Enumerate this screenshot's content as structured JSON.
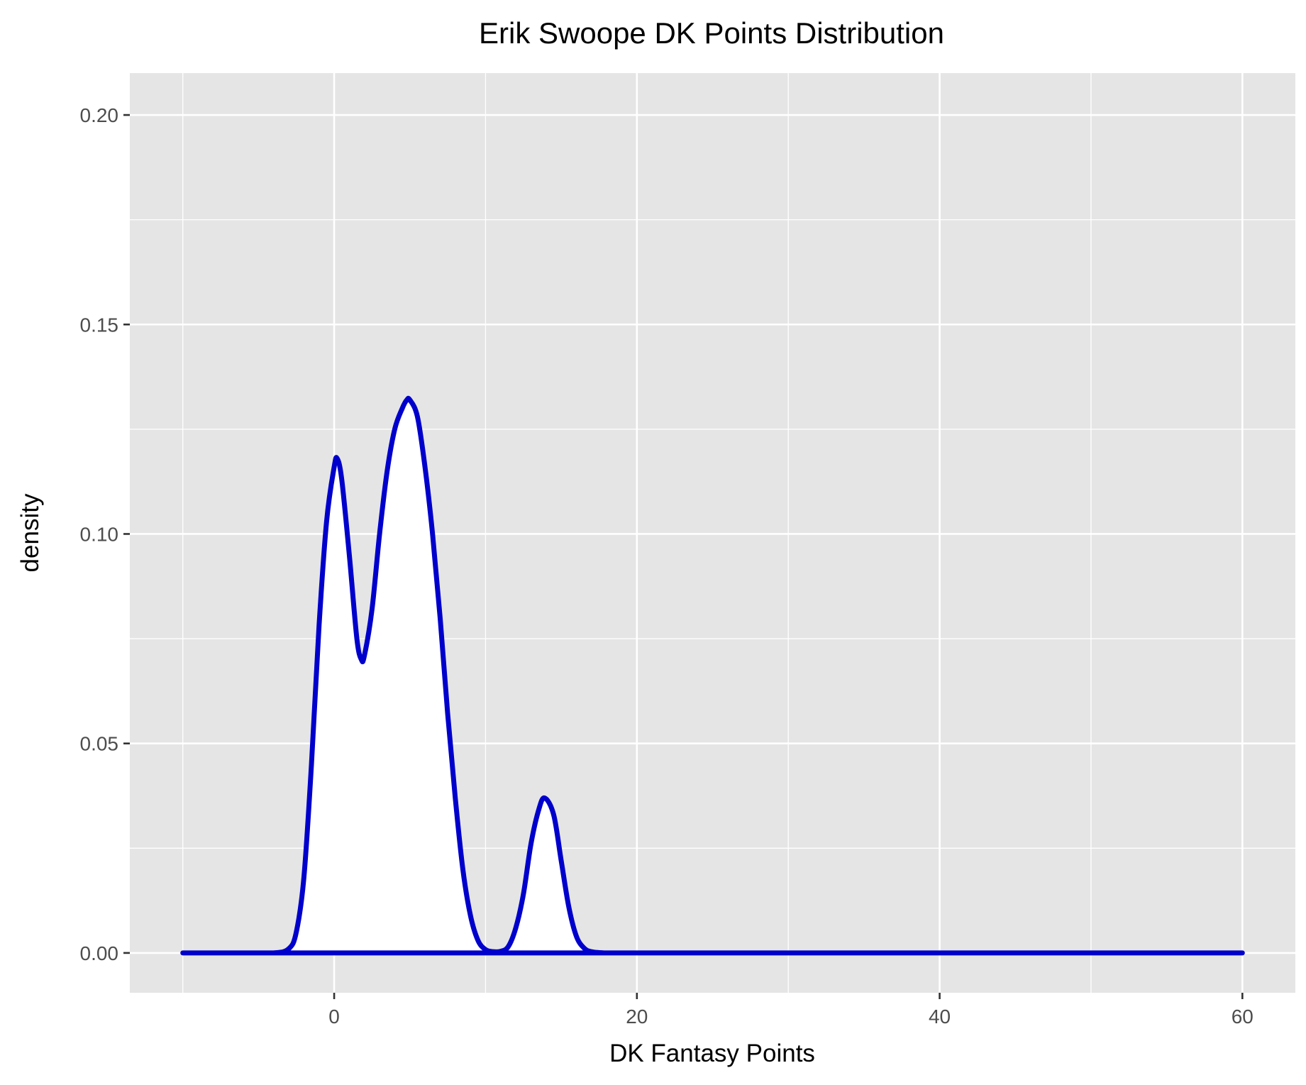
{
  "chart_data": {
    "type": "area",
    "title": "Erik Swoope DK Points Distribution",
    "xlabel": "DK Fantasy Points",
    "ylabel": "density",
    "xlim": [
      -13.5,
      63.5
    ],
    "ylim": [
      -0.0095,
      0.21
    ],
    "x_ticks": [
      0,
      20,
      40,
      60
    ],
    "x_tick_labels": [
      "0",
      "20",
      "40",
      "60"
    ],
    "y_ticks": [
      0,
      0.05,
      0.1,
      0.15,
      0.2
    ],
    "y_tick_labels": [
      "0.00",
      "0.05",
      "0.10",
      "0.15",
      "0.20"
    ],
    "grid": true,
    "legend": "none",
    "line_color": "#0000cc",
    "fill_color": "#ffffff",
    "panel_color": "#e5e5e5",
    "series": [
      {
        "x": [
          -10,
          -6,
          -4,
          -3,
          -2.5,
          -2,
          -1.5,
          -1,
          -0.5,
          0,
          0.2,
          0.5,
          1,
          1.5,
          1.8,
          2,
          2.5,
          3,
          3.5,
          4,
          4.5,
          4.8,
          5,
          5.5,
          6,
          6.5,
          7,
          7.5,
          8,
          8.5,
          9,
          9.5,
          10,
          10.5,
          11,
          11.5,
          12,
          12.5,
          13,
          13.5,
          13.9,
          14.5,
          15,
          15.5,
          16,
          16.5,
          17,
          18,
          20,
          30,
          40,
          50,
          60
        ],
        "y": [
          0,
          0,
          0,
          0.001,
          0.005,
          0.018,
          0.045,
          0.078,
          0.103,
          0.116,
          0.118,
          0.113,
          0.095,
          0.075,
          0.07,
          0.071,
          0.082,
          0.1,
          0.115,
          0.125,
          0.13,
          0.132,
          0.132,
          0.128,
          0.116,
          0.1,
          0.08,
          0.057,
          0.037,
          0.02,
          0.009,
          0.003,
          0.0008,
          0.0003,
          0.0004,
          0.0015,
          0.006,
          0.014,
          0.026,
          0.034,
          0.037,
          0.033,
          0.022,
          0.011,
          0.004,
          0.0012,
          0.0003,
          0,
          0,
          0,
          0,
          0,
          0
        ]
      }
    ]
  }
}
